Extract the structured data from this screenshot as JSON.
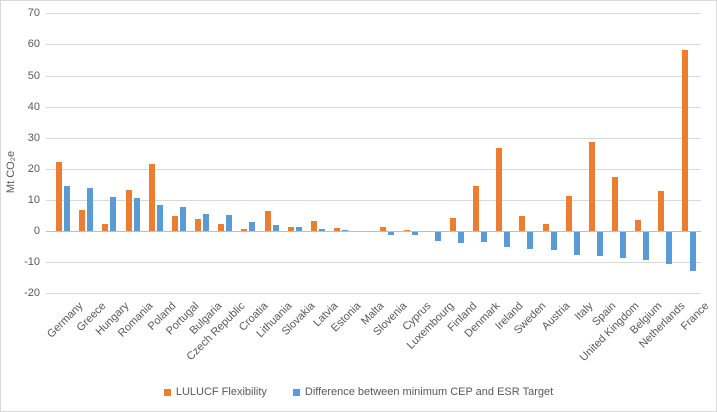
{
  "chart_data": {
    "type": "bar",
    "title": "",
    "xlabel": "",
    "ylabel": "Mt CO₂e",
    "ylim": [
      -20,
      70
    ],
    "yticks": [
      70,
      60,
      50,
      40,
      30,
      20,
      10,
      0,
      -10,
      -20
    ],
    "grid": true,
    "legend_position": "bottom",
    "categories": [
      "Germany",
      "Greece",
      "Hungary",
      "Romania",
      "Poland",
      "Portugal",
      "Bulgaria",
      "Czech Republic",
      "Croatia",
      "Lithuania",
      "Slovakia",
      "Latvia",
      "Estonia",
      "Malta",
      "Slovenia",
      "Cyprus",
      "Luxembourg",
      "Finland",
      "Denmark",
      "Ireland",
      "Sweden",
      "Austria",
      "Italy",
      "Spain",
      "United Kingdom",
      "Belgium",
      "Netherlands",
      "France"
    ],
    "series": [
      {
        "name": "LULUCF Flexibility",
        "color": "#ED7D31",
        "values": [
          22.3,
          6.7,
          2.1,
          13.2,
          21.7,
          4.8,
          3.8,
          2.1,
          0.6,
          6.5,
          1.2,
          3.1,
          1.0,
          0,
          1.3,
          0.4,
          0,
          4.1,
          14.4,
          26.6,
          4.7,
          2.2,
          11.2,
          28.7,
          17.5,
          3.4,
          13.0,
          58.2
        ]
      },
      {
        "name": "Difference between minimum CEP and ESR Target",
        "color": "#5B9BD5",
        "values": [
          14.4,
          13.8,
          11.0,
          10.7,
          8.3,
          7.8,
          5.6,
          5.0,
          2.8,
          1.9,
          1.2,
          0.7,
          0.4,
          0,
          -1.0,
          -1.0,
          -2.8,
          -3.6,
          -3.3,
          -4.7,
          -5.4,
          -5.8,
          -7.3,
          -7.7,
          -8.2,
          -9.1,
          -10.4,
          -12.5
        ]
      }
    ],
    "colors": {
      "gridline": "#d9d9d9",
      "axis_line": "#bfbfbf",
      "text": "#595959"
    }
  }
}
